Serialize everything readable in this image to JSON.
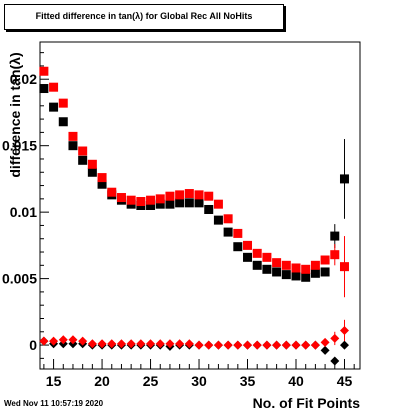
{
  "title": "Fitted difference in tan(λ) for Global Rec All NoHits",
  "footer_timestamp": "Wed Nov 11 10:57:19 2020",
  "chart_data": {
    "type": "scatter",
    "title": "Fitted difference in tan(λ) for Global Rec All NoHits",
    "xlabel": "No. of Fit Points",
    "ylabel": "difference in tan(λ)",
    "xlim": [
      13.6,
      46.6
    ],
    "ylim": [
      -0.0018,
      0.0228
    ],
    "x_ticks": [
      15,
      20,
      25,
      30,
      35,
      40,
      45
    ],
    "x_tick_labels": [
      "15",
      "20",
      "25",
      "30",
      "35",
      "40",
      "45"
    ],
    "y_ticks": [
      0,
      0.005,
      0.01,
      0.015,
      0.02
    ],
    "y_tick_labels": [
      "0",
      "0.005",
      "0.01",
      "0.015",
      "0.02"
    ],
    "grid": false,
    "x": [
      14,
      15,
      16,
      17,
      18,
      19,
      20,
      21,
      22,
      23,
      24,
      25,
      26,
      27,
      28,
      29,
      30,
      31,
      32,
      33,
      34,
      35,
      36,
      37,
      38,
      39,
      40,
      41,
      42,
      43,
      44,
      45
    ],
    "series": [
      {
        "color": "#000000",
        "marker": "square",
        "values": [
          0.0193,
          0.0179,
          0.0168,
          0.015,
          0.0139,
          0.013,
          0.0121,
          0.0113,
          0.0109,
          0.0106,
          0.0105,
          0.0105,
          0.0106,
          0.0106,
          0.0107,
          0.0107,
          0.0107,
          0.0102,
          0.0094,
          0.0085,
          0.0074,
          0.0066,
          0.006,
          0.0057,
          0.0055,
          0.0053,
          0.0052,
          0.0051,
          0.0054,
          0.0055,
          0.0082,
          0.0125
        ],
        "errors": [
          0,
          0,
          0,
          0,
          0,
          0,
          0,
          0,
          0,
          0,
          0,
          0,
          0,
          0,
          0,
          0,
          0,
          0,
          0,
          0,
          0,
          0,
          0,
          0,
          0,
          0,
          0,
          0,
          0,
          0,
          0.0009,
          0.003
        ]
      },
      {
        "color": "#ff0000",
        "marker": "square",
        "values": [
          0.0206,
          0.0194,
          0.0182,
          0.0157,
          0.0146,
          0.0136,
          0.0126,
          0.0115,
          0.0111,
          0.0109,
          0.0108,
          0.0109,
          0.011,
          0.0112,
          0.0113,
          0.0114,
          0.0113,
          0.0112,
          0.0106,
          0.0095,
          0.0084,
          0.0075,
          0.0069,
          0.0066,
          0.0062,
          0.006,
          0.0058,
          0.0057,
          0.006,
          0.0064,
          0.0068,
          0.0059
        ],
        "errors": [
          0,
          0,
          0,
          0,
          0,
          0,
          0,
          0,
          0,
          0,
          0,
          0,
          0,
          0,
          0,
          0,
          0,
          0,
          0,
          0,
          0,
          0,
          0,
          0,
          0,
          0,
          0,
          0,
          0,
          0,
          0.0008,
          0.0023
        ]
      },
      {
        "color": "#000000",
        "marker": "diamond",
        "values": [
          0.0003,
          0.0001,
          0.0001,
          0.0001,
          0.0001,
          0.0,
          0.0,
          0.0,
          0.0,
          0.0,
          0.0,
          0.0,
          0.0,
          -0.0001,
          0.0,
          0.0,
          0.0,
          0.0,
          0.0,
          0.0,
          0.0,
          0.0,
          0.0,
          0.0,
          0.0,
          0.0,
          0.0,
          0.0,
          0.0,
          -0.0004,
          -0.0012,
          0.0
        ],
        "errors": [
          0,
          0,
          0,
          0,
          0,
          0,
          0,
          0,
          0,
          0,
          0,
          0,
          0,
          0,
          0,
          0,
          0,
          0,
          0,
          0,
          0,
          0,
          0,
          0,
          0,
          0,
          0,
          0,
          0,
          0,
          0,
          0
        ]
      },
      {
        "color": "#ff0000",
        "marker": "diamond",
        "values": [
          0.0003,
          0.0003,
          0.0004,
          0.0004,
          0.0003,
          0.0001,
          0.0001,
          0.0001,
          0.0001,
          0.0001,
          0.0001,
          0.0001,
          0.0001,
          0.0001,
          0.0001,
          0.0001,
          0.0,
          0.0,
          0.0,
          0.0,
          0.0,
          0.0,
          0.0,
          0.0,
          0.0,
          0.0,
          0.0,
          0.0,
          0.0,
          0.0002,
          0.0005,
          0.0011
        ],
        "errors": [
          0,
          0,
          0,
          0,
          0,
          0,
          0,
          0,
          0,
          0,
          0,
          0,
          0,
          0,
          0,
          0,
          0,
          0,
          0,
          0,
          0,
          0,
          0,
          0,
          0,
          0,
          0,
          0,
          0,
          0.0002,
          0.0005,
          0.0008
        ]
      }
    ]
  }
}
